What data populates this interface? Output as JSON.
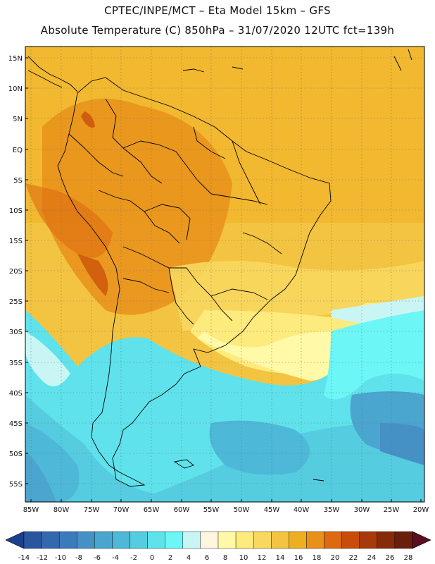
{
  "header": {
    "line1": "CPTEC/INPE/MCT –  Eta Model 15km – GFS",
    "line2": "Absolute Temperature (C) 850hPa – 31/07/2020 12UTC fct=139h"
  },
  "axes": {
    "lat_labels": [
      "15N",
      "10N",
      "5N",
      "EQ",
      "5S",
      "10S",
      "15S",
      "20S",
      "25S",
      "30S",
      "35S",
      "40S",
      "45S",
      "50S",
      "55S"
    ],
    "lon_labels": [
      "85W",
      "80W",
      "75W",
      "70W",
      "65W",
      "60W",
      "55W",
      "50W",
      "45W",
      "40W",
      "35W",
      "30W",
      "25W",
      "20W"
    ]
  },
  "colorbar": {
    "labels": [
      "-14",
      "-12",
      "-10",
      "-8",
      "-6",
      "-4",
      "-2",
      "0",
      "2",
      "4",
      "6",
      "8",
      "10",
      "12",
      "14",
      "16",
      "18",
      "20",
      "22",
      "24",
      "26",
      "28"
    ],
    "colors": [
      "#1d3f8f",
      "#2a56a0",
      "#3468ae",
      "#3b7bbb",
      "#4591c6",
      "#4aa5cf",
      "#4db8d8",
      "#55ccdf",
      "#5fe2ec",
      "#6cf6f6",
      "#c9f6f4",
      "#fff6e0",
      "#fff9a8",
      "#fdeb7d",
      "#f8d85e",
      "#f3c441",
      "#eeae22",
      "#e8901a",
      "#dd6a10",
      "#c94d0a",
      "#a83908",
      "#862a0a",
      "#6a1e0c",
      "#5a0f1f"
    ]
  }
}
